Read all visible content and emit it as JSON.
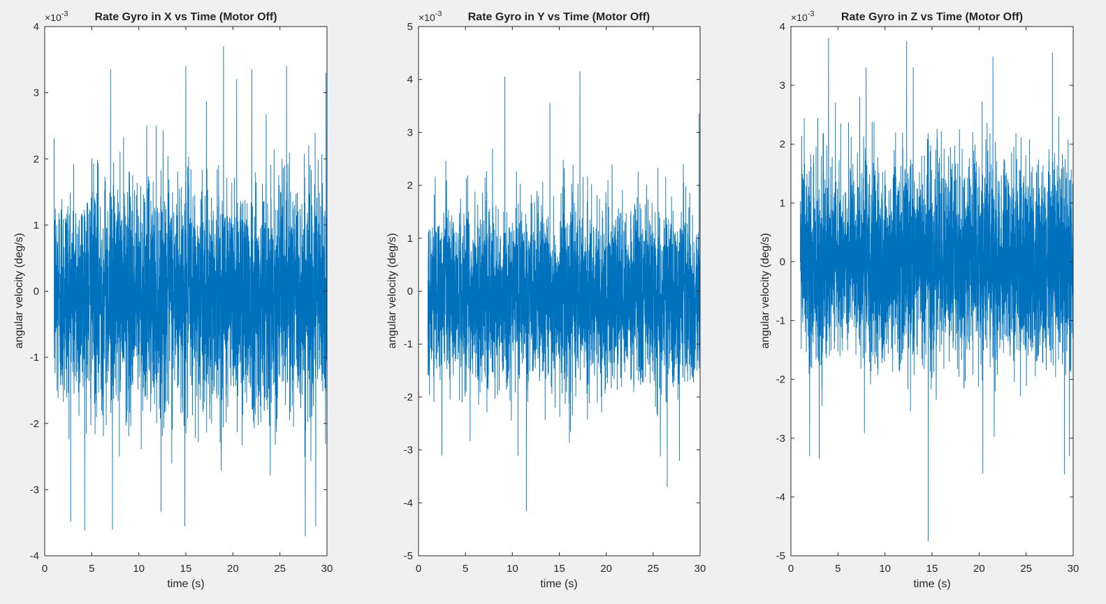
{
  "figure": {
    "background": "#f0f0f0",
    "line_color": "#0072bd",
    "axes_color": "#262626"
  },
  "chart_data": [
    {
      "type": "line",
      "title": "Rate Gyro in X vs Time (Motor Off)",
      "xlabel": "time (s)",
      "ylabel": "angular velocity (deg/s)",
      "y_exponent": {
        "base": "×10",
        "power": "-3"
      },
      "xlim": [
        0,
        30
      ],
      "ylim": [
        -4,
        4
      ],
      "xticks": [
        0,
        5,
        10,
        15,
        20,
        25,
        30
      ],
      "xtick_labels": [
        "0",
        "5",
        "10",
        "15",
        "20",
        "25",
        "30"
      ],
      "yticks": [
        -4,
        -3,
        -2,
        -1,
        0,
        1,
        2,
        3,
        4
      ],
      "ytick_labels": [
        "-4",
        "-3",
        "-2",
        "-1",
        "0",
        "1",
        "2",
        "3",
        "4"
      ],
      "grid": false,
      "series": [
        {
          "color": "#0072bd",
          "t_start": 1.0,
          "t_end": 30.0,
          "mean": -0.05,
          "std": 0.85,
          "peaks": [
            {
              "x": 7.2,
              "y": -3.6
            },
            {
              "x": 15.0,
              "y": 3.4
            },
            {
              "x": 19.0,
              "y": 3.7
            },
            {
              "x": 27.7,
              "y": -3.7
            },
            {
              "x": 7.0,
              "y": 3.35
            },
            {
              "x": 22.0,
              "y": 3.35
            },
            {
              "x": 29.9,
              "y": 3.3
            },
            {
              "x": 14.9,
              "y": -3.55
            },
            {
              "x": 28.8,
              "y": -3.55
            },
            {
              "x": 20.4,
              "y": 3.2
            },
            {
              "x": 25.7,
              "y": 3.4
            }
          ]
        }
      ]
    },
    {
      "type": "line",
      "title": "Rate Gyro in Y vs Time (Motor Off)",
      "xlabel": "time (s)",
      "ylabel": "angular velocity (deg/s)",
      "y_exponent": {
        "base": "×10",
        "power": "-3"
      },
      "xlim": [
        0,
        30
      ],
      "ylim": [
        -5,
        5
      ],
      "xticks": [
        0,
        5,
        10,
        15,
        20,
        25,
        30
      ],
      "xtick_labels": [
        "0",
        "5",
        "10",
        "15",
        "20",
        "25",
        "30"
      ],
      "yticks": [
        -5,
        -4,
        -3,
        -2,
        -1,
        0,
        1,
        2,
        3,
        4,
        5
      ],
      "ytick_labels": [
        "-5",
        "-4",
        "-3",
        "-2",
        "-1",
        "0",
        "1",
        "2",
        "3",
        "4",
        "5"
      ],
      "grid": false,
      "series": [
        {
          "color": "#0072bd",
          "t_start": 1.0,
          "t_end": 30.0,
          "mean": -0.1,
          "std": 0.85,
          "peaks": [
            {
              "x": 9.2,
              "y": 4.05
            },
            {
              "x": 17.2,
              "y": 4.15
            },
            {
              "x": 11.5,
              "y": -4.15
            },
            {
              "x": 26.5,
              "y": -3.7
            },
            {
              "x": 27.8,
              "y": -3.2
            },
            {
              "x": 29.9,
              "y": 3.35
            },
            {
              "x": 2.5,
              "y": -3.1
            },
            {
              "x": 14.0,
              "y": 3.55
            },
            {
              "x": 10.6,
              "y": -3.1
            }
          ]
        }
      ]
    },
    {
      "type": "line",
      "title": "Rate Gyro in Z vs Time (Motor Off)",
      "xlabel": "time (s)",
      "ylabel": "angular velocity (deg/s)",
      "y_exponent": {
        "base": "×10",
        "power": "-3"
      },
      "xlim": [
        0,
        30
      ],
      "ylim": [
        -5,
        4
      ],
      "xticks": [
        0,
        5,
        10,
        15,
        20,
        25,
        30
      ],
      "xtick_labels": [
        "0",
        "5",
        "10",
        "15",
        "20",
        "25",
        "30"
      ],
      "yticks": [
        -5,
        -4,
        -3,
        -2,
        -1,
        0,
        1,
        2,
        3,
        4
      ],
      "ytick_labels": [
        "-5",
        "-4",
        "-3",
        "-2",
        "-1",
        "0",
        "1",
        "2",
        "3",
        "4"
      ],
      "grid": false,
      "series": [
        {
          "color": "#0072bd",
          "t_start": 1.0,
          "t_end": 30.0,
          "mean": 0.0,
          "std": 0.85,
          "peaks": [
            {
              "x": 4.0,
              "y": 3.8
            },
            {
              "x": 12.3,
              "y": 3.75
            },
            {
              "x": 14.6,
              "y": -4.75
            },
            {
              "x": 27.8,
              "y": 3.55
            },
            {
              "x": 2.0,
              "y": -3.3
            },
            {
              "x": 20.4,
              "y": -3.6
            },
            {
              "x": 29.6,
              "y": -3.3
            },
            {
              "x": 3.0,
              "y": -3.35
            },
            {
              "x": 13.0,
              "y": 3.3
            },
            {
              "x": 8.0,
              "y": 3.3
            }
          ]
        }
      ]
    }
  ]
}
